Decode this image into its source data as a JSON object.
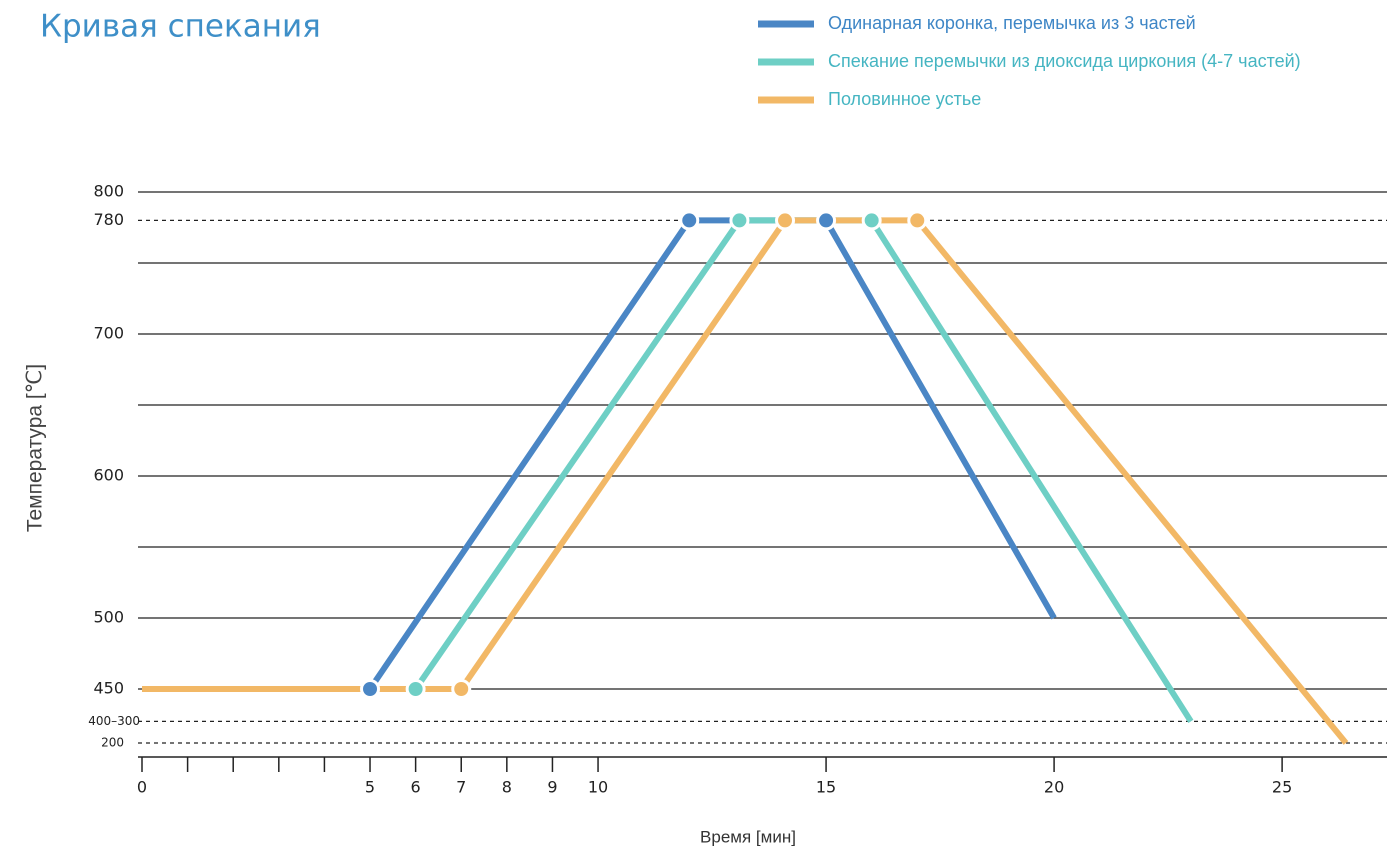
{
  "chart_data": {
    "type": "line",
    "title": "Кривая спекания",
    "xlabel": "Время [мин]",
    "ylabel": "Температура   [℃]",
    "xlim": [
      0,
      27.3
    ],
    "xticks": [
      0,
      5,
      6,
      7,
      8,
      9,
      10,
      15,
      20,
      25
    ],
    "minor_xticks": [
      1,
      2,
      3,
      4
    ],
    "ylim": [
      200,
      800
    ],
    "yticks": [
      450,
      500,
      600,
      700,
      800
    ],
    "minor_yticks": [
      550,
      650,
      750
    ],
    "reference_lines": [
      780,
      {
        "value": 300,
        "label": "400–300"
      },
      200
    ],
    "grid": true,
    "markers": true,
    "legend": "top-right",
    "series": [
      {
        "name": "Одинарная коронка, перемычка из 3 частей",
        "color": "#4a86c5",
        "x": [
          0,
          5,
          12,
          15,
          20
        ],
        "values": [
          450,
          450,
          780,
          780,
          500
        ]
      },
      {
        "name": "Спекание перемычки из диоксида циркония (4-7 частей)",
        "color": "#6ecfc5",
        "x": [
          0,
          6,
          13.1,
          16,
          23
        ],
        "values": [
          450,
          450,
          780,
          780,
          300
        ]
      },
      {
        "name": "Половинное устье",
        "color": "#f2b866",
        "x": [
          0,
          7,
          14.1,
          17,
          26.4
        ],
        "values": [
          450,
          450,
          780,
          780,
          200
        ]
      }
    ]
  }
}
